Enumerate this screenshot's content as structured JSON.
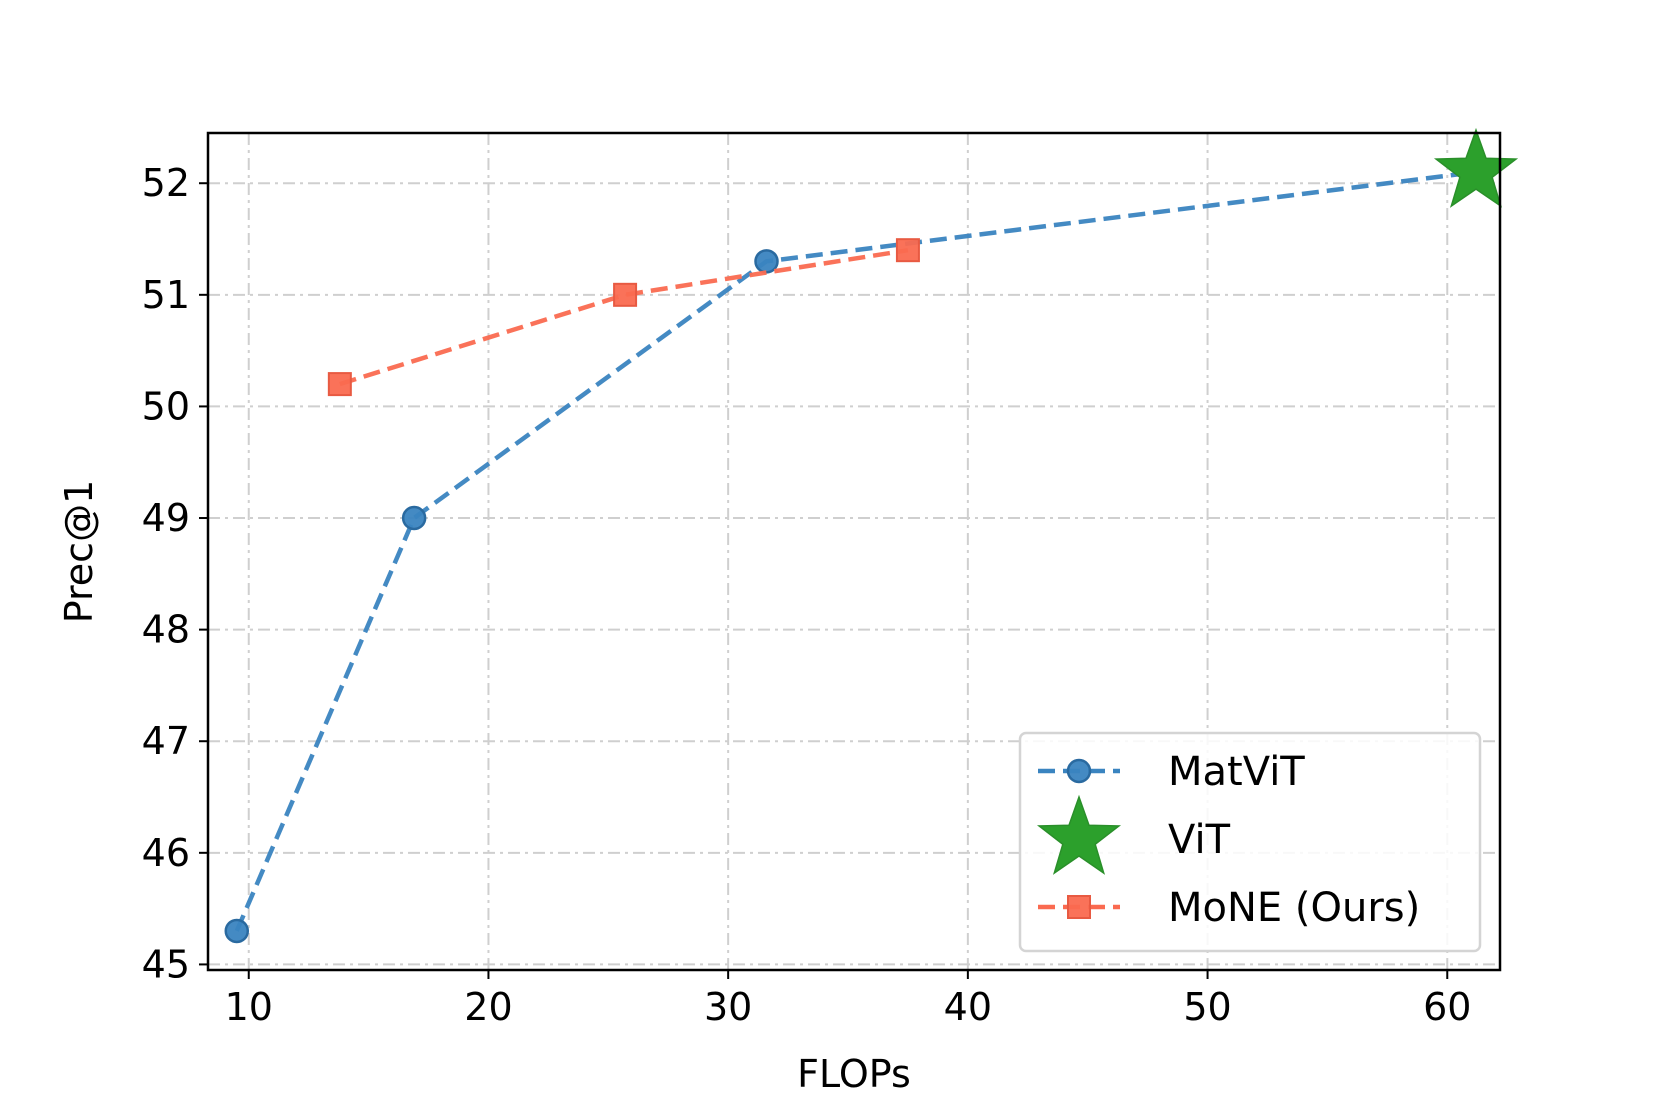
{
  "chart_data": {
    "type": "line",
    "title": "",
    "xlabel": "FLOPs",
    "ylabel": "Prec@1",
    "xlim": [
      8.3,
      62.2
    ],
    "ylim": [
      44.95,
      52.45
    ],
    "xticks": [
      10,
      20,
      30,
      40,
      50,
      60
    ],
    "yticks": [
      45,
      46,
      47,
      48,
      49,
      50,
      51,
      52
    ],
    "grid": true,
    "legend_position": "lower-right",
    "series": [
      {
        "name": "MatViT",
        "color": "#3a84c0",
        "marker": "circle",
        "line": "dashed",
        "x": [
          9.5,
          16.9,
          31.6,
          61.2
        ],
        "y": [
          45.3,
          49.0,
          51.3,
          52.1
        ]
      },
      {
        "name": "ViT",
        "color": "#2ca02c",
        "marker": "star",
        "line": "none",
        "x": [
          61.2
        ],
        "y": [
          52.1
        ]
      },
      {
        "name": "MoNE (Ours)",
        "color": "#fa6a50",
        "marker": "square",
        "line": "dashed",
        "x": [
          13.8,
          25.7,
          37.5
        ],
        "y": [
          50.2,
          51.0,
          51.4
        ]
      }
    ]
  }
}
